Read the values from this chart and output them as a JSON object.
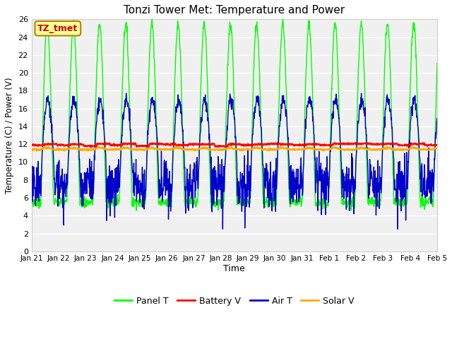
{
  "title": "Tonzi Tower Met: Temperature and Power",
  "xlabel": "Time",
  "ylabel": "Temperature (C) / Power (V)",
  "ylim": [
    0,
    26
  ],
  "yticks": [
    0,
    2,
    4,
    6,
    8,
    10,
    12,
    14,
    16,
    18,
    20,
    22,
    24,
    26
  ],
  "xtick_labels": [
    "Jan 21",
    "Jan 22",
    "Jan 23",
    "Jan 24",
    "Jan 25",
    "Jan 26",
    "Jan 27",
    "Jan 28",
    "Jan 29",
    "Jan 30",
    "Jan 31",
    "Feb 1",
    "Feb 2",
    "Feb 3",
    "Feb 4",
    "Feb 5"
  ],
  "annotation_text": "TZ_tmet",
  "annotation_color": "#cc0000",
  "annotation_bg": "#ffff99",
  "annotation_edge": "#aa8800",
  "fig_facecolor": "#ffffff",
  "plot_facecolor": "#f0f0f0",
  "grid_color": "#ffffff",
  "series": {
    "panel_t": {
      "color": "#00ff00",
      "label": "Panel T",
      "lw": 1.0
    },
    "battery_v": {
      "color": "#ff0000",
      "label": "Battery V",
      "lw": 1.5
    },
    "air_t": {
      "color": "#0000cc",
      "label": "Air T",
      "lw": 1.0
    },
    "solar_v": {
      "color": "#ffaa00",
      "label": "Solar V",
      "lw": 1.5
    }
  },
  "n_days": 15.5,
  "pts_per_day": 96,
  "figsize": [
    6.4,
    4.8
  ],
  "dpi": 100
}
